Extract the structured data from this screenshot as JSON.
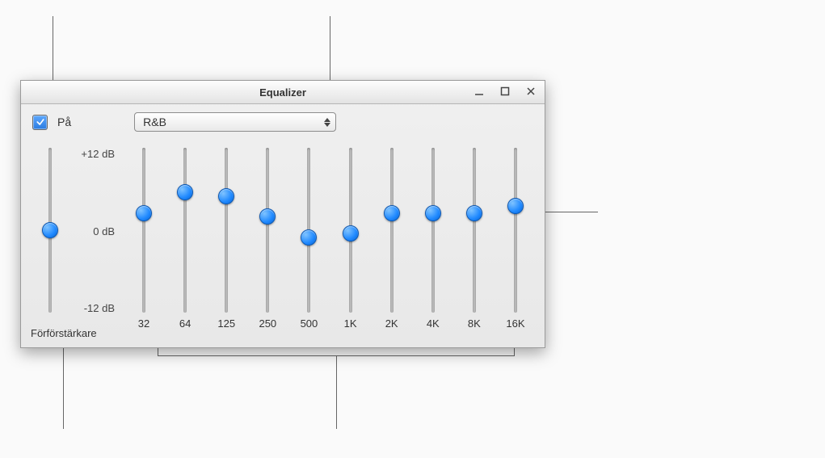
{
  "window": {
    "title": "Equalizer"
  },
  "toolbar": {
    "on_checked": true,
    "on_label": "På",
    "preset_value": "R&B"
  },
  "scale": {
    "max_label": "+12 dB",
    "mid_label": "0 dB",
    "min_label": "-12 dB",
    "min_db": -12,
    "max_db": 12
  },
  "preamp": {
    "label": "Förförstärkare",
    "value_db": 0
  },
  "bands": [
    {
      "freq_label": "32",
      "value_db": 2.5
    },
    {
      "freq_label": "64",
      "value_db": 5.5
    },
    {
      "freq_label": "125",
      "value_db": 5.0
    },
    {
      "freq_label": "250",
      "value_db": 2.0
    },
    {
      "freq_label": "500",
      "value_db": -1.0
    },
    {
      "freq_label": "1K",
      "value_db": -0.5
    },
    {
      "freq_label": "2K",
      "value_db": 2.5
    },
    {
      "freq_label": "4K",
      "value_db": 2.5
    },
    {
      "freq_label": "8K",
      "value_db": 2.5
    },
    {
      "freq_label": "16K",
      "value_db": 3.5
    }
  ],
  "style": {
    "thumb_color": "#1e88ff",
    "track_color": "#bdbdbd",
    "window_bg": "#ececec"
  }
}
